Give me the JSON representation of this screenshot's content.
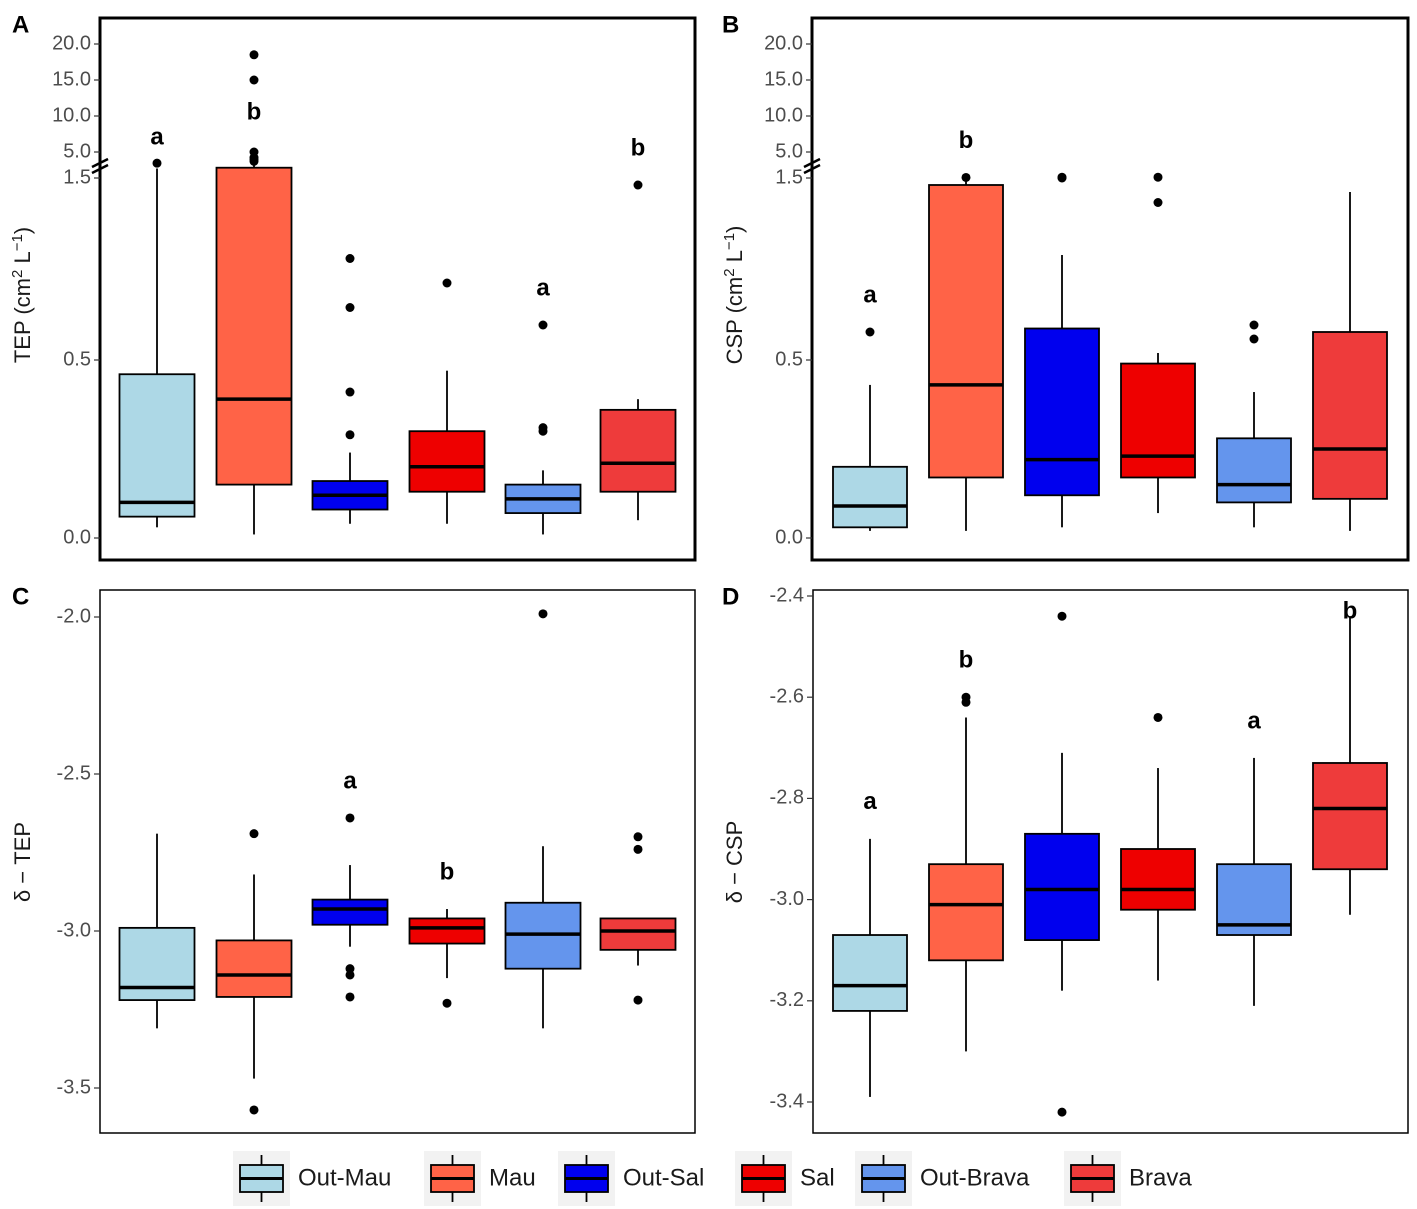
{
  "legend": {
    "items": [
      {
        "label": "Out-Mau",
        "color": "#ADD8E6"
      },
      {
        "label": "Mau",
        "color": "#FF6347"
      },
      {
        "label": "Out-Sal",
        "color": "#0000EE"
      },
      {
        "label": "Sal",
        "color": "#EE0000"
      },
      {
        "label": "Out-Brava",
        "color": "#6495ED"
      },
      {
        "label": "Brava",
        "color": "#EE3B3B"
      }
    ]
  },
  "chart_data": [
    {
      "panel": "A",
      "type": "box",
      "ylabel": "TEP (cm² L⁻¹)",
      "ylabel_parts": {
        "name": "TEP (cm",
        "sup1": "2",
        "mid": " L",
        "sup2": "−1",
        "end": ")"
      },
      "categories": [
        "Out-Mau",
        "Mau",
        "Out-Sal",
        "Out-Brava",
        "Sal",
        "Brava"
      ],
      "broken_axis": true,
      "lower_ticks": [
        "0.0",
        "0.5",
        "1.5"
      ],
      "lower_tick_values": [
        0,
        0.5,
        1.5
      ],
      "upper_ticks": [
        "5.0",
        "10.0",
        "15.0",
        "20.0"
      ],
      "upper_tick_values": [
        5,
        10,
        15,
        20
      ],
      "boxes": [
        {
          "group": "Out-Mau",
          "whisker_low": 0.03,
          "q1": 0.06,
          "median": 0.1,
          "q3": 0.46,
          "whisker_high": 1.37,
          "outliers": [
            2
          ],
          "sig": "a"
        },
        {
          "group": "Mau",
          "whisker_low": 0.01,
          "q1": 0.15,
          "median": 0.39,
          "q3": 1.4,
          "whisker_high": 1.5,
          "outliers": [
            2.5,
            3,
            3.5,
            5,
            15,
            18.5
          ],
          "sig": "b"
        },
        {
          "group": "Out-Sal",
          "whisker_low": 0.04,
          "q1": 0.08,
          "median": 0.12,
          "q3": 0.16,
          "whisker_high": 0.24,
          "outliers": [
            0.29,
            0.41,
            0.65,
            0.79
          ],
          "sig": ""
        },
        {
          "group": "Sal",
          "whisker_low": 0.04,
          "q1": 0.13,
          "median": 0.2,
          "q3": 0.3,
          "whisker_high": 0.47,
          "outliers": [
            0.72
          ],
          "sig": ""
        },
        {
          "group": "Out-Brava",
          "whisker_low": 0.01,
          "q1": 0.07,
          "median": 0.11,
          "q3": 0.15,
          "whisker_high": 0.19,
          "outliers": [
            0.3,
            0.31,
            0.6
          ],
          "sig": "a"
        },
        {
          "group": "Brava",
          "whisker_low": 0.05,
          "q1": 0.13,
          "median": 0.21,
          "q3": 0.36,
          "whisker_high": 0.39,
          "outliers": [
            1.0
          ],
          "sig": "b"
        }
      ]
    },
    {
      "panel": "B",
      "type": "box",
      "ylabel": "CSP (cm² L⁻¹)",
      "ylabel_parts": {
        "name": "CSP (cm",
        "sup1": "2",
        "mid": " L",
        "sup2": "−1",
        "end": ")"
      },
      "categories": [
        "Out-Mau",
        "Mau",
        "Out-Sal",
        "Sal",
        "Out-Brava",
        "Brava"
      ],
      "broken_axis": true,
      "lower_ticks": [
        "0.0",
        "0.5",
        "1.5"
      ],
      "lower_tick_values": [
        0,
        0.5,
        1.5
      ],
      "upper_ticks": [
        "5.0",
        "10.0",
        "15.0",
        "20.0"
      ],
      "upper_tick_values": [
        5,
        10,
        15,
        20
      ],
      "boxes": [
        {
          "group": "Out-Mau",
          "whisker_low": 0.02,
          "q1": 0.03,
          "median": 0.09,
          "q3": 0.2,
          "whisker_high": 0.43,
          "outliers": [
            0.58
          ],
          "sig": "a"
        },
        {
          "group": "Mau",
          "whisker_low": 0.02,
          "q1": 0.17,
          "median": 0.43,
          "q3": 1.0,
          "whisker_high": 1.02,
          "outliers": [
            1.04
          ],
          "sig": "b"
        },
        {
          "group": "Out-Sal",
          "whisker_low": 0.03,
          "q1": 0.12,
          "median": 0.22,
          "q3": 0.59,
          "whisker_high": 0.8,
          "outliers": [
            1.02,
            1.05
          ],
          "sig": ""
        },
        {
          "group": "Sal",
          "whisker_low": 0.07,
          "q1": 0.17,
          "median": 0.23,
          "q3": 0.49,
          "whisker_high": 0.52,
          "outliers": [
            0.95,
            1.05
          ],
          "sig": ""
        },
        {
          "group": "Out-Brava",
          "whisker_low": 0.03,
          "q1": 0.1,
          "median": 0.15,
          "q3": 0.28,
          "whisker_high": 0.41,
          "outliers": [
            0.56,
            0.6
          ],
          "sig": ""
        },
        {
          "group": "Brava",
          "whisker_low": 0.02,
          "q1": 0.11,
          "median": 0.25,
          "q3": 0.58,
          "whisker_high": 0.98,
          "outliers": [],
          "sig": ""
        }
      ]
    },
    {
      "panel": "C",
      "type": "box",
      "ylabel": "δ − TEP",
      "categories": [
        "Out-Mau",
        "Mau",
        "Out-Sal",
        "Sal",
        "Out-Brava",
        "Brava"
      ],
      "ylim": [
        -3.65,
        -1.9
      ],
      "ticks": [
        "-2.0",
        "-2.5",
        "-3.0",
        "-3.5"
      ],
      "tick_values": [
        -2.0,
        -2.5,
        -3.0,
        -3.5
      ],
      "boxes": [
        {
          "group": "Out-Mau",
          "whisker_low": -3.31,
          "q1": -3.22,
          "median": -3.18,
          "q3": -2.99,
          "whisker_high": -2.69,
          "outliers": [],
          "sig": ""
        },
        {
          "group": "Mau",
          "whisker_low": -3.47,
          "q1": -3.21,
          "median": -3.14,
          "q3": -3.03,
          "whisker_high": -2.82,
          "outliers": [
            -2.69,
            -3.57
          ],
          "sig": ""
        },
        {
          "group": "Out-Sal",
          "whisker_low": -3.05,
          "q1": -2.98,
          "median": -2.93,
          "q3": -2.9,
          "whisker_high": -2.79,
          "outliers": [
            -2.64,
            -3.12,
            -3.14,
            -3.21
          ],
          "sig": "a"
        },
        {
          "group": "Sal",
          "whisker_low": -3.15,
          "q1": -3.04,
          "median": -2.99,
          "q3": -2.96,
          "whisker_high": -2.93,
          "outliers": [
            -3.23
          ],
          "sig": "b"
        },
        {
          "group": "Out-Brava",
          "whisker_low": -3.31,
          "q1": -3.12,
          "median": -3.01,
          "q3": -2.91,
          "whisker_high": -2.73,
          "outliers": [
            -1.99
          ],
          "sig": ""
        },
        {
          "group": "Brava",
          "whisker_low": -3.11,
          "q1": -3.06,
          "median": -3.0,
          "q3": -2.96,
          "whisker_high": -2.96,
          "outliers": [
            -2.7,
            -2.74,
            -3.22
          ],
          "sig": ""
        }
      ]
    },
    {
      "panel": "D",
      "type": "box",
      "ylabel": "δ − CSP",
      "categories": [
        "Out-Mau",
        "Mau",
        "Out-Sal",
        "Sal",
        "Out-Brava",
        "Brava"
      ],
      "ylim": [
        -3.47,
        -2.38
      ],
      "ticks": [
        "-2.4",
        "-2.6",
        "-2.8",
        "-3.0",
        "-3.2",
        "-3.4"
      ],
      "tick_values": [
        -2.4,
        -2.6,
        -2.8,
        -3.0,
        -3.2,
        -3.4
      ],
      "boxes": [
        {
          "group": "Out-Mau",
          "whisker_low": -3.39,
          "q1": -3.22,
          "median": -3.17,
          "q3": -3.07,
          "whisker_high": -2.88,
          "outliers": [],
          "sig": "a"
        },
        {
          "group": "Mau",
          "whisker_low": -3.3,
          "q1": -3.12,
          "median": -3.01,
          "q3": -2.93,
          "whisker_high": -2.64,
          "outliers": [
            -2.6,
            -2.61
          ],
          "sig": "b"
        },
        {
          "group": "Out-Sal",
          "whisker_low": -3.18,
          "q1": -3.08,
          "median": -2.98,
          "q3": -2.87,
          "whisker_high": -2.71,
          "outliers": [
            -2.44,
            -3.42
          ],
          "sig": ""
        },
        {
          "group": "Sal",
          "whisker_low": -3.16,
          "q1": -3.02,
          "median": -2.98,
          "q3": -2.9,
          "whisker_high": -2.74,
          "outliers": [
            -2.64
          ],
          "sig": ""
        },
        {
          "group": "Out-Brava",
          "whisker_low": -3.21,
          "q1": -3.07,
          "median": -3.05,
          "q3": -2.93,
          "whisker_high": -2.72,
          "outliers": [],
          "sig": "a"
        },
        {
          "group": "Brava",
          "whisker_low": -3.03,
          "q1": -2.94,
          "median": -2.82,
          "q3": -2.73,
          "whisker_high": -2.44,
          "outliers": [],
          "sig": "b"
        }
      ]
    }
  ]
}
